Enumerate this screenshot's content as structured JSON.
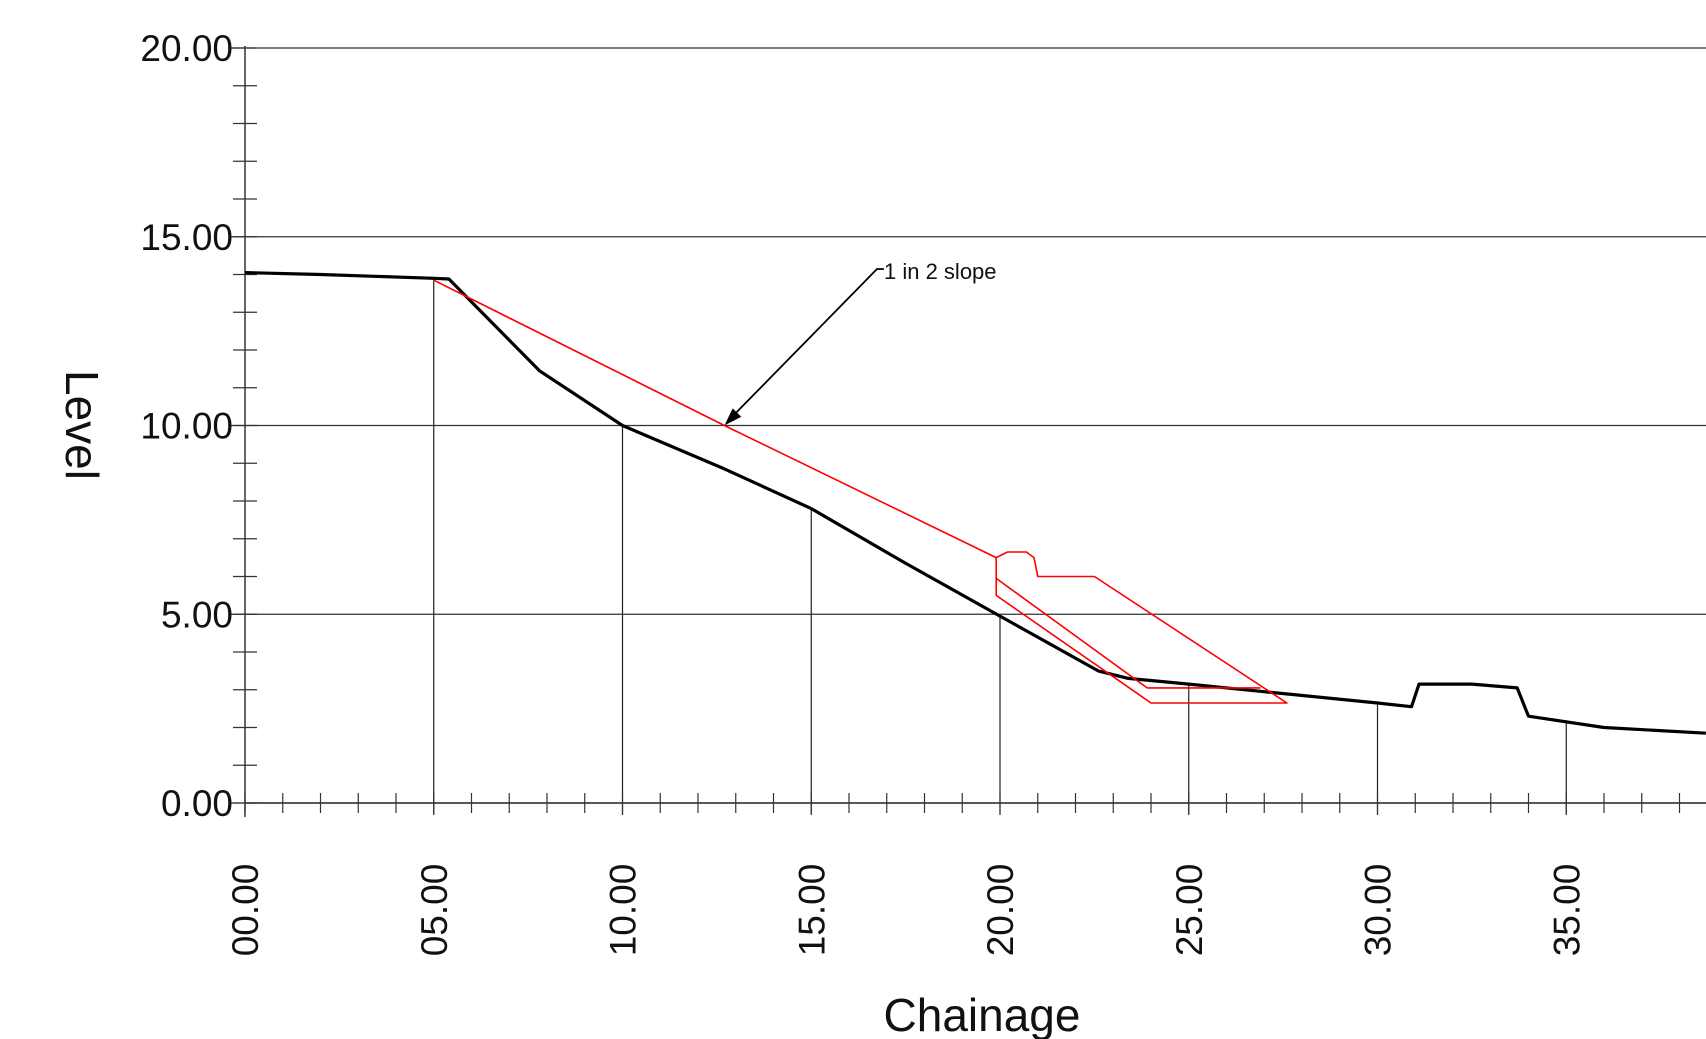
{
  "chart_data": {
    "type": "line",
    "xlabel": "Chainage",
    "ylabel": "Level",
    "x_ticks": [
      "00.00",
      "05.00",
      "10.00",
      "15.00",
      "20.00",
      "25.00",
      "30.00",
      "35.00"
    ],
    "y_ticks": [
      "0.00",
      "5.00",
      "10.00",
      "15.00",
      "20.00"
    ],
    "xlim": [
      0,
      38.7
    ],
    "ylim": [
      0,
      20
    ],
    "grid": true,
    "annotation": {
      "text": "1 in 2 slope",
      "x": 12.7,
      "y": 10.0
    },
    "colors": {
      "ground": "#000000",
      "design": "#ff0000"
    },
    "series": [
      {
        "points": [
          [
            0,
            14.05
          ],
          [
            2,
            14.0
          ],
          [
            5,
            13.9
          ],
          [
            5.4,
            13.88
          ],
          [
            7.8,
            11.45
          ],
          [
            10.0,
            10.0
          ],
          [
            12.7,
            8.85
          ],
          [
            15.0,
            7.8
          ],
          [
            17.5,
            6.35
          ],
          [
            20.0,
            4.95
          ],
          [
            22.6,
            3.5
          ],
          [
            23.4,
            3.3
          ],
          [
            25.0,
            3.15
          ],
          [
            26.5,
            3.0
          ],
          [
            30.0,
            2.65
          ],
          [
            30.9,
            2.55
          ],
          [
            31.1,
            3.15
          ],
          [
            32.5,
            3.15
          ],
          [
            33.7,
            3.05
          ],
          [
            34.0,
            2.3
          ],
          [
            36.0,
            2.0
          ],
          [
            38.7,
            1.85
          ]
        ]
      },
      {
        "points": [
          [
            5.0,
            13.85
          ],
          [
            12.7,
            10.0
          ],
          [
            19.9,
            6.5
          ],
          [
            20.2,
            6.65
          ],
          [
            20.7,
            6.65
          ],
          [
            20.9,
            6.5
          ],
          [
            21.0,
            6.0
          ],
          [
            22.5,
            6.0
          ],
          [
            27.6,
            2.65
          ],
          [
            24.0,
            2.65
          ],
          [
            19.9,
            5.5
          ],
          [
            19.9,
            6.5
          ]
        ]
      },
      {
        "points": [
          [
            19.9,
            5.95
          ],
          [
            23.9,
            3.05
          ],
          [
            26.9,
            3.05
          ]
        ]
      }
    ]
  }
}
